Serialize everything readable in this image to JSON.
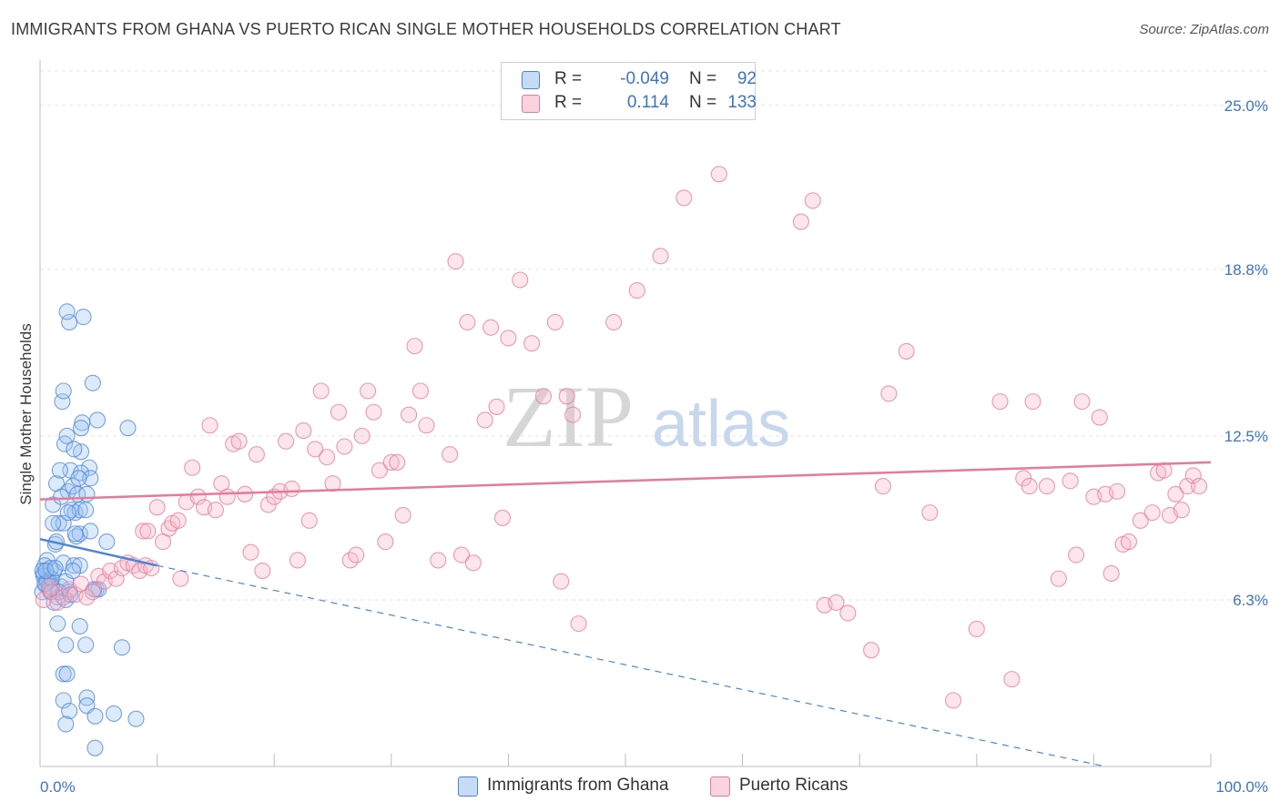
{
  "chart_data": {
    "type": "scatter",
    "title": "IMMIGRANTS FROM GHANA VS PUERTO RICAN SINGLE MOTHER HOUSEHOLDS CORRELATION CHART",
    "source": "Source: ZipAtlas.com",
    "xlabel": "",
    "ylabel": "Single Mother Households",
    "xlim": [
      0,
      100
    ],
    "ylim": [
      0,
      26.3
    ],
    "x_tick_labels": [
      "0.0%",
      "100.0%"
    ],
    "y_ticks": [
      {
        "value": 6.3,
        "label": "6.3%"
      },
      {
        "value": 12.5,
        "label": "12.5%"
      },
      {
        "value": 18.8,
        "label": "18.8%"
      },
      {
        "value": 25.0,
        "label": "25.0%"
      }
    ],
    "watermark": {
      "zip": "ZIP",
      "atlas": "atlas"
    },
    "legend": [
      {
        "name": "Immigrants from Ghana",
        "r_label": "R =",
        "r": "-0.049",
        "n_label": "N =",
        "n": "92",
        "color": "#9dc3f0",
        "edge": "#4a86d8"
      },
      {
        "name": "Puerto Ricans",
        "r_label": "R =",
        "r": "0.114",
        "n_label": "N =",
        "n": "133",
        "color": "#f6b6c8",
        "edge": "#e57a9b"
      }
    ],
    "series": [
      {
        "name": "Immigrants from Ghana",
        "color": "#4a86d8",
        "trend": {
          "x0": 0,
          "y0": 8.6,
          "x1": 10,
          "y1": 7.6,
          "dash_to_x": 91,
          "dash_to_y": 0
        },
        "points": [
          [
            0.3,
            7.3
          ],
          [
            0.5,
            6.9
          ],
          [
            0.6,
            7.8
          ],
          [
            0.8,
            7.0
          ],
          [
            1.0,
            6.8
          ],
          [
            0.2,
            6.6
          ],
          [
            0.4,
            7.6
          ],
          [
            0.7,
            7.2
          ],
          [
            1.2,
            7.4
          ],
          [
            0.9,
            6.6
          ],
          [
            1.5,
            6.4
          ],
          [
            1.8,
            6.8
          ],
          [
            2.0,
            7.7
          ],
          [
            2.2,
            7.0
          ],
          [
            1.3,
            8.4
          ],
          [
            1.6,
            9.2
          ],
          [
            1.1,
            9.9
          ],
          [
            1.4,
            10.7
          ],
          [
            2.4,
            10.4
          ],
          [
            2.6,
            11.2
          ],
          [
            1.7,
            11.2
          ],
          [
            2.8,
            10.6
          ],
          [
            2.1,
            12.2
          ],
          [
            2.3,
            12.5
          ],
          [
            1.9,
            13.8
          ],
          [
            2.0,
            14.2
          ],
          [
            2.5,
            16.8
          ],
          [
            2.3,
            17.2
          ],
          [
            3.7,
            17.0
          ],
          [
            4.5,
            14.5
          ],
          [
            3.6,
            13.0
          ],
          [
            3.5,
            12.8
          ],
          [
            4.9,
            13.1
          ],
          [
            3.5,
            11.9
          ],
          [
            4.2,
            11.3
          ],
          [
            3.5,
            11.1
          ],
          [
            4.3,
            10.9
          ],
          [
            3.2,
            10.3
          ],
          [
            4.0,
            10.3
          ],
          [
            2.7,
            9.7
          ],
          [
            3.0,
            9.6
          ],
          [
            3.4,
            9.7
          ],
          [
            2.0,
            9.2
          ],
          [
            3.1,
            8.7
          ],
          [
            3.4,
            8.8
          ],
          [
            4.3,
            8.9
          ],
          [
            5.7,
            8.5
          ],
          [
            1.1,
            9.2
          ],
          [
            3.9,
            9.7
          ],
          [
            2.9,
            7.6
          ],
          [
            3.4,
            7.6
          ],
          [
            2.8,
            7.4
          ],
          [
            2.5,
            6.6
          ],
          [
            2.2,
            6.3
          ],
          [
            4.8,
            6.7
          ],
          [
            5.0,
            6.7
          ],
          [
            4.6,
            6.7
          ],
          [
            1.5,
            5.4
          ],
          [
            3.4,
            5.3
          ],
          [
            2.2,
            4.6
          ],
          [
            3.9,
            4.6
          ],
          [
            7.0,
            4.5
          ],
          [
            2.0,
            3.5
          ],
          [
            2.3,
            3.5
          ],
          [
            4.0,
            2.6
          ],
          [
            4.0,
            2.3
          ],
          [
            2.0,
            2.5
          ],
          [
            2.5,
            2.1
          ],
          [
            6.3,
            2.0
          ],
          [
            4.7,
            1.9
          ],
          [
            2.2,
            1.6
          ],
          [
            8.2,
            1.8
          ],
          [
            4.7,
            0.7
          ],
          [
            7.5,
            12.8
          ],
          [
            1.2,
            6.2
          ],
          [
            0.3,
            7.2
          ],
          [
            0.6,
            7.0
          ],
          [
            0.8,
            6.7
          ],
          [
            0.2,
            7.4
          ],
          [
            0.4,
            6.9
          ],
          [
            1.0,
            7.1
          ],
          [
            0.9,
            7.5
          ],
          [
            1.6,
            6.6
          ],
          [
            2.6,
            6.5
          ],
          [
            1.4,
            8.5
          ],
          [
            3.0,
            8.8
          ],
          [
            2.4,
            9.6
          ],
          [
            1.8,
            10.2
          ],
          [
            3.3,
            10.9
          ],
          [
            2.9,
            12.0
          ],
          [
            0.5,
            7.4
          ],
          [
            1.3,
            7.5
          ]
        ]
      },
      {
        "name": "Puerto Ricans",
        "color": "#e57a9b",
        "trend": {
          "x0": 0,
          "y0": 10.1,
          "x1": 100,
          "y1": 11.5
        },
        "points": [
          [
            0.3,
            6.3
          ],
          [
            0.8,
            6.8
          ],
          [
            1.0,
            6.6
          ],
          [
            1.5,
            6.2
          ],
          [
            2.0,
            6.4
          ],
          [
            2.5,
            6.7
          ],
          [
            3.0,
            6.5
          ],
          [
            3.5,
            6.9
          ],
          [
            4.0,
            6.4
          ],
          [
            4.5,
            6.6
          ],
          [
            5.0,
            7.2
          ],
          [
            5.5,
            7.0
          ],
          [
            6.0,
            7.4
          ],
          [
            6.5,
            7.1
          ],
          [
            7.0,
            7.5
          ],
          [
            7.5,
            7.7
          ],
          [
            8.0,
            7.6
          ],
          [
            8.5,
            7.4
          ],
          [
            9.0,
            7.6
          ],
          [
            9.5,
            7.5
          ],
          [
            8.8,
            8.9
          ],
          [
            9.2,
            8.9
          ],
          [
            10.0,
            9.8
          ],
          [
            10.5,
            8.5
          ],
          [
            11.0,
            9.0
          ],
          [
            11.3,
            9.2
          ],
          [
            11.8,
            9.3
          ],
          [
            12.0,
            7.1
          ],
          [
            12.5,
            10.0
          ],
          [
            13.0,
            11.3
          ],
          [
            13.5,
            10.2
          ],
          [
            14.0,
            9.8
          ],
          [
            14.5,
            12.9
          ],
          [
            15.0,
            9.7
          ],
          [
            15.5,
            10.7
          ],
          [
            16.0,
            10.2
          ],
          [
            16.5,
            12.2
          ],
          [
            17.0,
            12.3
          ],
          [
            17.5,
            10.3
          ],
          [
            18.0,
            8.1
          ],
          [
            18.5,
            11.8
          ],
          [
            19.0,
            7.4
          ],
          [
            19.5,
            9.9
          ],
          [
            20.0,
            10.2
          ],
          [
            20.5,
            10.4
          ],
          [
            21.0,
            12.3
          ],
          [
            21.5,
            10.5
          ],
          [
            22.0,
            7.8
          ],
          [
            22.5,
            12.7
          ],
          [
            23.0,
            9.3
          ],
          [
            23.5,
            12.0
          ],
          [
            24.0,
            14.2
          ],
          [
            24.5,
            11.7
          ],
          [
            25.0,
            10.7
          ],
          [
            25.5,
            13.4
          ],
          [
            26.0,
            12.1
          ],
          [
            26.5,
            7.8
          ],
          [
            27.0,
            8.0
          ],
          [
            27.5,
            12.5
          ],
          [
            28.0,
            14.2
          ],
          [
            28.5,
            13.4
          ],
          [
            29.0,
            11.2
          ],
          [
            29.5,
            8.5
          ],
          [
            30.0,
            11.5
          ],
          [
            30.5,
            11.5
          ],
          [
            31.0,
            9.5
          ],
          [
            31.5,
            13.3
          ],
          [
            32.0,
            15.9
          ],
          [
            32.5,
            14.2
          ],
          [
            33.0,
            12.9
          ],
          [
            34.0,
            7.8
          ],
          [
            35.0,
            11.8
          ],
          [
            35.5,
            19.1
          ],
          [
            36.0,
            8.0
          ],
          [
            36.5,
            16.8
          ],
          [
            37.0,
            7.7
          ],
          [
            38.0,
            13.1
          ],
          [
            38.5,
            16.6
          ],
          [
            39.0,
            13.6
          ],
          [
            39.5,
            9.4
          ],
          [
            40.0,
            16.2
          ],
          [
            41.0,
            18.4
          ],
          [
            42.0,
            16.0
          ],
          [
            43.0,
            14.0
          ],
          [
            44.0,
            16.8
          ],
          [
            44.5,
            7.0
          ],
          [
            45.0,
            14.0
          ],
          [
            45.5,
            13.3
          ],
          [
            46.0,
            5.4
          ],
          [
            49.0,
            16.8
          ],
          [
            51.0,
            18.0
          ],
          [
            53.0,
            19.3
          ],
          [
            55.0,
            21.5
          ],
          [
            58.0,
            22.4
          ],
          [
            65.0,
            20.6
          ],
          [
            66.0,
            21.4
          ],
          [
            67.0,
            6.1
          ],
          [
            68.0,
            6.2
          ],
          [
            69.0,
            5.8
          ],
          [
            71.0,
            4.4
          ],
          [
            72.0,
            10.6
          ],
          [
            72.5,
            14.1
          ],
          [
            74.0,
            15.7
          ],
          [
            76.0,
            9.6
          ],
          [
            78.0,
            2.5
          ],
          [
            80.0,
            5.2
          ],
          [
            82.0,
            13.8
          ],
          [
            83.0,
            3.3
          ],
          [
            84.0,
            10.9
          ],
          [
            84.5,
            10.6
          ],
          [
            84.8,
            13.8
          ],
          [
            86.0,
            10.6
          ],
          [
            87.0,
            7.1
          ],
          [
            88.0,
            10.8
          ],
          [
            88.5,
            8.0
          ],
          [
            89.0,
            13.8
          ],
          [
            90.0,
            10.2
          ],
          [
            90.5,
            13.2
          ],
          [
            91.0,
            10.3
          ],
          [
            91.5,
            7.3
          ],
          [
            92.0,
            10.4
          ],
          [
            92.5,
            8.4
          ],
          [
            93.0,
            8.5
          ],
          [
            94.0,
            9.3
          ],
          [
            95.0,
            9.6
          ],
          [
            95.5,
            11.1
          ],
          [
            96.0,
            11.2
          ],
          [
            96.5,
            9.5
          ],
          [
            97.0,
            10.3
          ],
          [
            97.5,
            9.7
          ],
          [
            98.0,
            10.6
          ],
          [
            98.5,
            11.0
          ],
          [
            99.0,
            10.6
          ]
        ]
      }
    ]
  }
}
